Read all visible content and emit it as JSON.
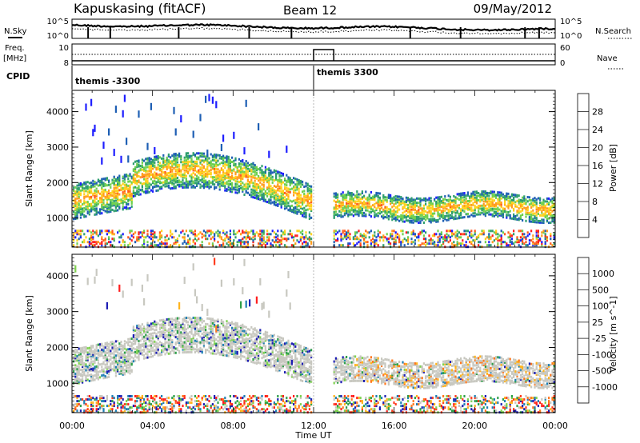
{
  "header": {
    "station": "Kapuskasing (fitACF)",
    "beam": "Beam 12",
    "date": "09/May/2012"
  },
  "top_panels": {
    "nsky_label": "N.Sky",
    "nsearch_label": "N.Search",
    "log_top_tick": "10^5",
    "log_bottom_tick": "10^0",
    "freq_label_line1": "Freq.",
    "freq_label_line2": "[MHz]",
    "freq_ticks": [
      "10",
      "8"
    ],
    "nave_label": "Nave",
    "nave_ticks": [
      "60",
      "0"
    ],
    "cpid_label": "CPID",
    "cpid_segments": [
      {
        "label": "themis -3300",
        "start_hour": 0,
        "end_hour": 12
      },
      {
        "label": "themis 3300",
        "start_hour": 12,
        "end_hour": 24
      }
    ]
  },
  "chart_data": [
    {
      "type": "heatmap",
      "title": "",
      "ylabel": "Slant Range [km]",
      "xlabel": "",
      "x_range_hours": [
        0,
        24
      ],
      "ylim": [
        180,
        4600
      ],
      "yticks": [
        1000,
        2000,
        3000,
        4000
      ],
      "colorbar": {
        "label": "Power [dB]",
        "ticks": [
          "4",
          "8",
          "12",
          "16",
          "20",
          "24",
          "28"
        ],
        "colors": [
          "#1e1eff",
          "#1e5fb4",
          "#2e9e6e",
          "#6fd04f",
          "#ffd21e",
          "#ff9c1e",
          "#ff5a1e",
          "#ff1e1e"
        ]
      }
    },
    {
      "type": "heatmap",
      "title": "",
      "ylabel": "Slant Range [km]",
      "xlabel": "Time UT",
      "x_range_hours": [
        0,
        24
      ],
      "ylim": [
        180,
        4600
      ],
      "yticks": [
        1000,
        2000,
        3000,
        4000
      ],
      "xtick_labels": [
        "00:00",
        "04:00",
        "08:00",
        "12:00",
        "16:00",
        "20:00",
        "00:00"
      ],
      "colorbar": {
        "label": "Velocity [m s^-1]",
        "ticks": [
          "1000",
          "500",
          "100",
          "25",
          "-25",
          "-100",
          "-500",
          "-1000"
        ],
        "colors": [
          "#1e1eb4",
          "#1e7fb4",
          "#2ea04a",
          "#7fd24f",
          "#c8c8c0",
          "#ffb41e",
          "#ff781e",
          "#ff3c1e",
          "#ff1e1e"
        ]
      }
    }
  ]
}
